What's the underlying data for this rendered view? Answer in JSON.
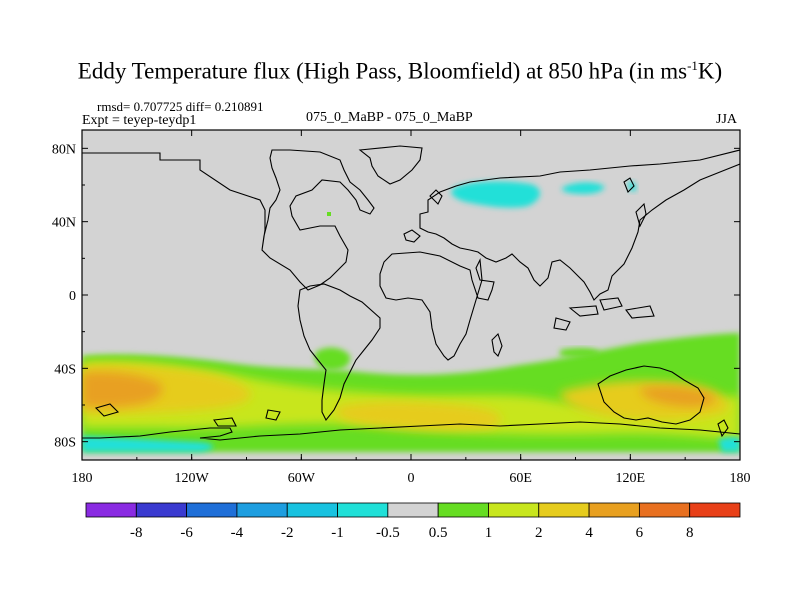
{
  "header": {
    "title_main": "Eddy Temperature flux (High Pass, Bloomfield) at 850 hPa (in ms",
    "title_sup": "-1",
    "title_end": "K)",
    "rmsd_line": "rmsd= 0.707725  diff= 0.210891",
    "expt_line": "Expt = teyep-teydp1",
    "case_line": "075_0_MaBP - 075_0_MaBP",
    "season": "JJA"
  },
  "chart_data": {
    "type": "heatmap",
    "title": "Eddy Temperature flux (High Pass, Bloomfield) at 850 hPa (in ms-1K)",
    "x_range": [
      -180,
      180
    ],
    "y_range": [
      -90,
      90
    ],
    "x_ticks": [
      {
        "value": -180,
        "label": "180"
      },
      {
        "value": -120,
        "label": "120W"
      },
      {
        "value": -60,
        "label": "60W"
      },
      {
        "value": 0,
        "label": "0"
      },
      {
        "value": 60,
        "label": "60E"
      },
      {
        "value": 120,
        "label": "120E"
      },
      {
        "value": 180,
        "label": "180"
      }
    ],
    "y_ticks": [
      {
        "value": 80,
        "label": "80N"
      },
      {
        "value": 40,
        "label": "40N"
      },
      {
        "value": 0,
        "label": "0"
      },
      {
        "value": -40,
        "label": "40S"
      },
      {
        "value": -80,
        "label": "80S"
      }
    ],
    "colorbar": {
      "labels": [
        "-8",
        "-6",
        "-4",
        "-2",
        "-1",
        "-0.5",
        "0.5",
        "1",
        "2",
        "4",
        "6",
        "8"
      ],
      "colors": [
        "#8a2be2",
        "#3a3ad0",
        "#1f6fd8",
        "#1e9ee0",
        "#18c2e0",
        "#20e0d8",
        "#d3d3d3",
        "#66dd22",
        "#c8e61e",
        "#e6cc1e",
        "#e8a020",
        "#e87020",
        "#e84018"
      ]
    },
    "background_color": "#d3d3d3",
    "regions": [
      {
        "name": "southern-ocean-band",
        "value": "1 to 2",
        "lon": [
          -180,
          180
        ],
        "lat": [
          -40,
          -75
        ]
      },
      {
        "name": "south-pacific-maximum",
        "value": "4 to 6",
        "lon": [
          -180,
          -140
        ],
        "lat": [
          -45,
          -65
        ]
      },
      {
        "name": "south-indian-maximum",
        "value": "2 to 4",
        "lon": [
          100,
          170
        ],
        "lat": [
          -50,
          -65
        ]
      },
      {
        "name": "eurasia-negative",
        "value": "-1 to -0.5",
        "lon": [
          25,
          70
        ],
        "lat": [
          40,
          55
        ]
      },
      {
        "name": "antarctic-coast-negative",
        "value": "-1 to -0.5",
        "lon": [
          -180,
          -140
        ],
        "lat": [
          -78,
          -85
        ]
      }
    ]
  }
}
